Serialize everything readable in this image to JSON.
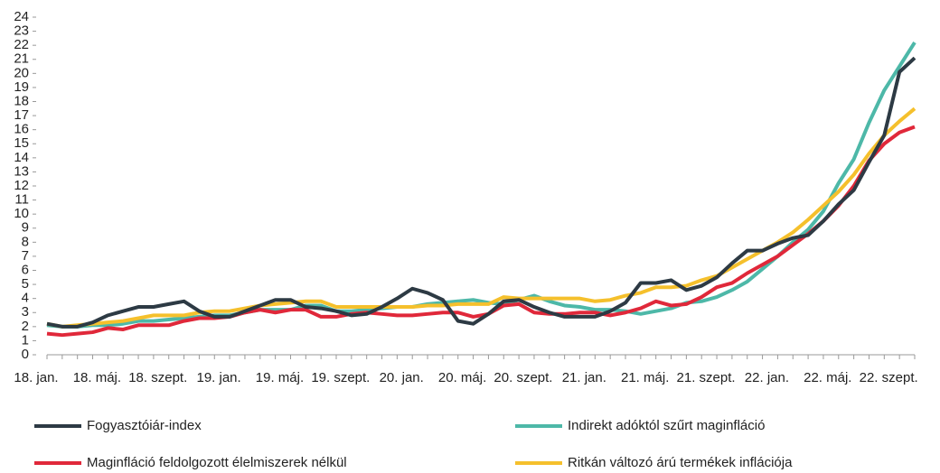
{
  "chart_data": {
    "type": "line",
    "categories": [
      "18. jan.",
      null,
      null,
      null,
      "18. máj.",
      null,
      null,
      null,
      "18. szept.",
      null,
      null,
      null,
      "19. jan.",
      null,
      null,
      null,
      "19. máj.",
      null,
      null,
      null,
      "19. szept.",
      null,
      null,
      null,
      "20. jan.",
      null,
      null,
      null,
      "20. máj.",
      null,
      null,
      null,
      "20. szept.",
      null,
      null,
      null,
      "21. jan.",
      null,
      null,
      null,
      "21. máj.",
      null,
      null,
      null,
      "21. szept.",
      null,
      null,
      null,
      "22. jan.",
      null,
      null,
      null,
      "22. máj.",
      null,
      null,
      null,
      "22. szept.",
      null
    ],
    "ylim": [
      0,
      24
    ],
    "yticks": [
      0,
      1,
      2,
      3,
      4,
      5,
      6,
      7,
      8,
      9,
      10,
      11,
      12,
      13,
      14,
      15,
      16,
      17,
      18,
      19,
      20,
      21,
      22,
      23,
      24
    ],
    "legend": "bottom",
    "series": [
      {
        "name": "Indirekt adóktól szűrt maginfláció",
        "color": "#4db8a8",
        "values": [
          2.1,
          2.0,
          2.0,
          2.1,
          2.1,
          2.2,
          2.4,
          2.4,
          2.5,
          2.6,
          2.7,
          2.8,
          2.8,
          3.0,
          3.2,
          3.2,
          3.2,
          3.5,
          3.5,
          3.1,
          3.1,
          3.2,
          3.3,
          3.4,
          3.4,
          3.6,
          3.7,
          3.8,
          3.9,
          3.7,
          3.6,
          3.9,
          4.2,
          3.8,
          3.5,
          3.4,
          3.2,
          3.2,
          3.1,
          2.9,
          3.1,
          3.3,
          3.7,
          3.8,
          4.1,
          4.6,
          5.2,
          6.1,
          7.0,
          8.0,
          8.9,
          10.2,
          12.2,
          13.9,
          16.5,
          18.8,
          20.5,
          22.2
        ]
      },
      {
        "name": "Maginfláció feldolgozott élelmiszerek nélkül",
        "color": "#e0283a",
        "values": [
          1.5,
          1.4,
          1.5,
          1.6,
          1.9,
          1.8,
          2.1,
          2.1,
          2.1,
          2.4,
          2.6,
          2.6,
          2.7,
          3.0,
          3.2,
          3.0,
          3.2,
          3.2,
          2.7,
          2.7,
          2.9,
          3.0,
          2.9,
          2.8,
          2.8,
          2.9,
          3.0,
          3.0,
          2.7,
          2.9,
          3.5,
          3.6,
          3.0,
          2.9,
          2.9,
          3.0,
          3.0,
          2.8,
          3.0,
          3.3,
          3.8,
          3.5,
          3.6,
          4.1,
          4.8,
          5.1,
          5.8,
          6.4,
          7.0,
          7.8,
          8.6,
          9.5,
          10.6,
          12.0,
          13.8,
          15.0,
          15.8,
          16.2
        ]
      },
      {
        "name": "Ritkán változó árú termékek inflációja",
        "color": "#f5c02c",
        "values": [
          2.2,
          2.0,
          2.1,
          2.2,
          2.3,
          2.4,
          2.6,
          2.8,
          2.8,
          2.8,
          3.0,
          3.1,
          3.1,
          3.3,
          3.5,
          3.6,
          3.7,
          3.8,
          3.8,
          3.4,
          3.4,
          3.4,
          3.4,
          3.4,
          3.4,
          3.5,
          3.5,
          3.6,
          3.6,
          3.6,
          4.1,
          4.0,
          4.0,
          4.0,
          4.0,
          4.0,
          3.8,
          3.9,
          4.2,
          4.4,
          4.8,
          4.8,
          4.9,
          5.3,
          5.6,
          6.2,
          6.8,
          7.4,
          8.0,
          8.7,
          9.6,
          10.6,
          11.6,
          12.8,
          14.3,
          15.6,
          16.6,
          17.5
        ]
      },
      {
        "name": "Fogyasztóiár-index",
        "color": "#2d3a44",
        "values": [
          2.2,
          2.0,
          2.0,
          2.3,
          2.8,
          3.1,
          3.4,
          3.4,
          3.6,
          3.8,
          3.1,
          2.7,
          2.7,
          3.1,
          3.5,
          3.9,
          3.9,
          3.4,
          3.3,
          3.1,
          2.8,
          2.9,
          3.4,
          4.0,
          4.7,
          4.4,
          3.9,
          2.4,
          2.2,
          2.9,
          3.8,
          3.9,
          3.4,
          3.0,
          2.7,
          2.7,
          2.7,
          3.1,
          3.7,
          5.1,
          5.1,
          5.3,
          4.6,
          4.9,
          5.5,
          6.5,
          7.4,
          7.4,
          7.9,
          8.3,
          8.5,
          9.5,
          10.7,
          11.7,
          13.7,
          15.6,
          20.1,
          21.1
        ]
      }
    ]
  }
}
